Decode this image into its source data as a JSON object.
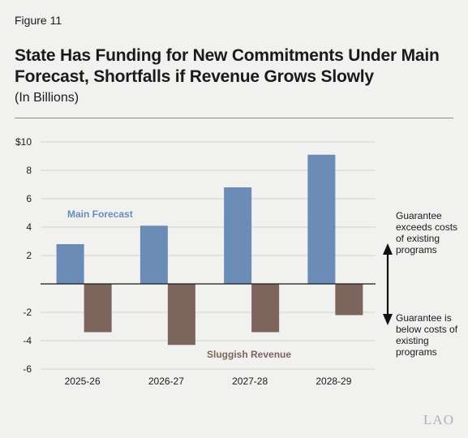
{
  "figure_label": "Figure 11",
  "title": "State Has Funding for New Commitments Under Main Forecast, Shortfalls if Revenue Grows Slowly",
  "subtitle": "(In Billions)",
  "logo": "LAO",
  "annotations": {
    "above": [
      "Guarantee",
      "exceeds costs",
      "of existing",
      "programs"
    ],
    "below": [
      "Guarantee is",
      "below costs of",
      "existing",
      "programs"
    ]
  },
  "colors": {
    "main": "#6b8cb6",
    "sluggish": "#7d645c",
    "grid": "#d4d4d4"
  },
  "chart_data": {
    "type": "bar",
    "title": "State Has Funding for New Commitments Under Main Forecast, Shortfalls if Revenue Grows Slowly",
    "subtitle": "(In Billions)",
    "categories": [
      "2025-26",
      "2026-27",
      "2027-28",
      "2028-29"
    ],
    "series": [
      {
        "name": "Main Forecast",
        "values": [
          2.8,
          4.1,
          6.8,
          9.1
        ]
      },
      {
        "name": "Sluggish Revenue",
        "values": [
          -3.4,
          -4.3,
          -3.4,
          -2.2
        ]
      }
    ],
    "yticks": [
      "$10",
      "8",
      "6",
      "4",
      "2",
      "",
      "-2",
      "-4",
      "-6"
    ],
    "ylim": [
      -6,
      10
    ],
    "grid": true
  }
}
